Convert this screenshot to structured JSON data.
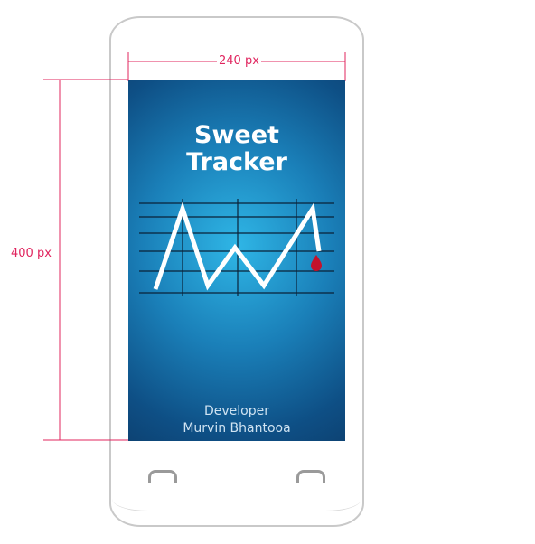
{
  "app": {
    "title_line1": "Sweet",
    "title_line2": "Tracker",
    "developer_label": "Developer",
    "developer_name": "Murvin Bhantooa"
  },
  "annotations": {
    "width_label": "240 px",
    "height_label": "400 px",
    "accent_color": "#e0245e"
  },
  "icons": {
    "logo": "line-chart-icon",
    "drop": "blood-drop-icon",
    "left_button": "back-button-icon",
    "right_button": "menu-button-icon"
  }
}
